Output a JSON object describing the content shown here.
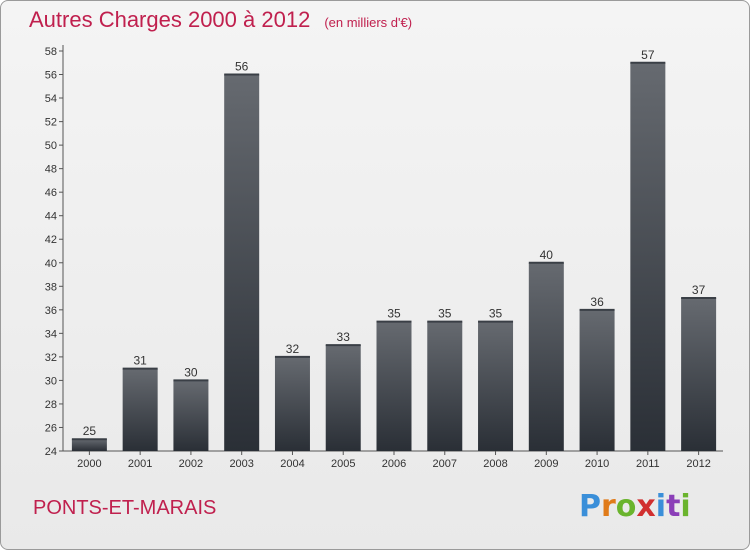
{
  "header": {
    "title": "Autres Charges 2000 à 2012",
    "subtitle": "(en milliers d'€)"
  },
  "footer": {
    "commune": "PONTS-ET-MARAIS",
    "logo_text": "Proxiti",
    "logo_colors": [
      "#3a8fd9",
      "#e07b1a",
      "#6ab42d",
      "#d12f2f",
      "#3a8fd9",
      "#8b3fb8",
      "#6ab42d"
    ]
  },
  "chart_data": {
    "type": "bar",
    "categories": [
      "2000",
      "2001",
      "2002",
      "2003",
      "2004",
      "2005",
      "2006",
      "2007",
      "2008",
      "2009",
      "2010",
      "2011",
      "2012"
    ],
    "values": [
      25,
      31,
      30,
      56,
      32,
      33,
      35,
      35,
      35,
      40,
      36,
      57,
      37
    ],
    "value_labels": [
      "25",
      "31",
      "30",
      "56",
      "32",
      "33",
      "35",
      "35",
      "35",
      "40",
      "36",
      "57",
      "37"
    ],
    "ylim": [
      24,
      58
    ],
    "yticks": [
      24,
      26,
      28,
      30,
      32,
      34,
      36,
      38,
      40,
      42,
      44,
      46,
      48,
      50,
      52,
      54,
      56,
      58
    ],
    "ytick_labels": [
      "24",
      "26",
      "28",
      "30",
      "32",
      "34",
      "36",
      "38",
      "40",
      "42",
      "44",
      "46",
      "48",
      "50",
      "52",
      "54",
      "56",
      "58"
    ],
    "grid": false,
    "bar_color_top": "#666a70",
    "bar_color_bottom": "#2a2f36"
  }
}
